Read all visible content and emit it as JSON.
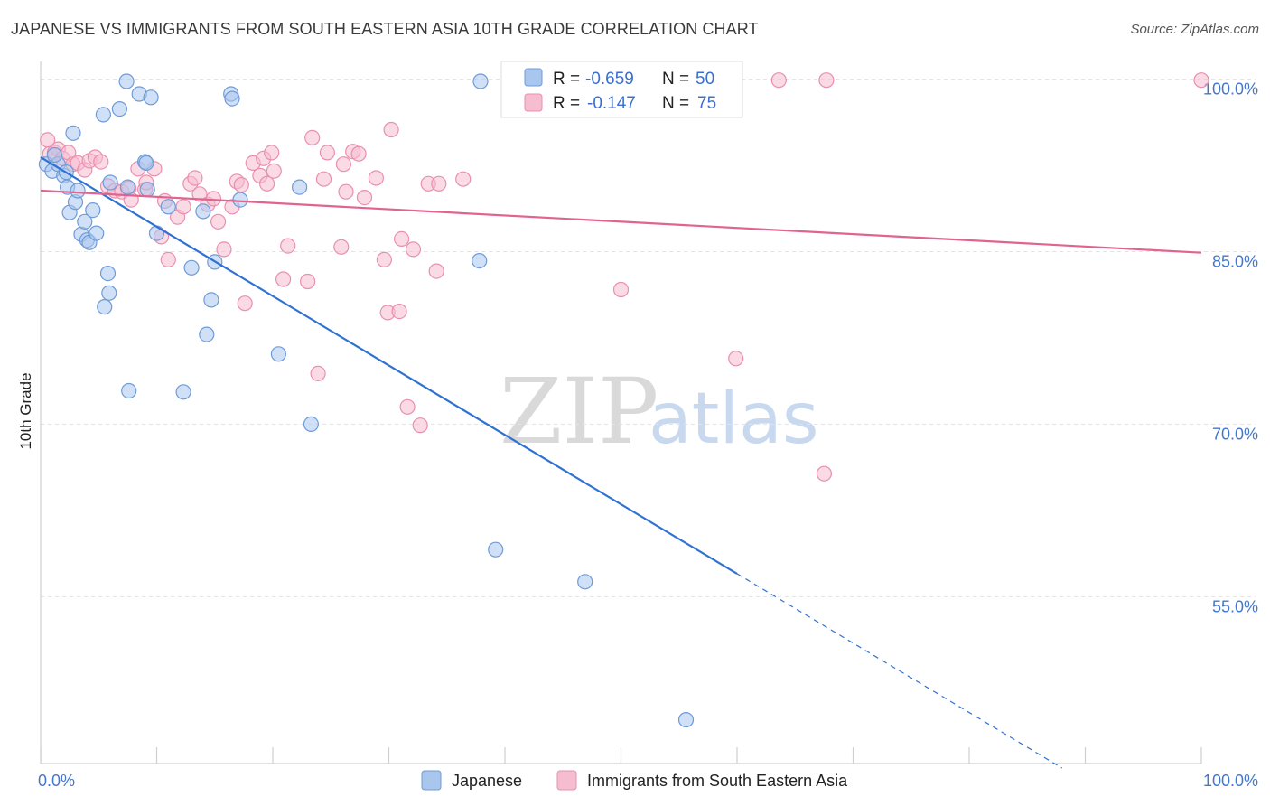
{
  "header": {
    "title": "JAPANESE VS IMMIGRANTS FROM SOUTH EASTERN ASIA 10TH GRADE CORRELATION CHART",
    "source": "Source: ZipAtlas.com"
  },
  "watermark": {
    "zip": "ZIP",
    "atlas": "atlas"
  },
  "colors": {
    "blue_fill": "#a9c6ee",
    "blue_stroke": "#6f9bd8",
    "blue_line": "#2f72d2",
    "pink_fill": "#f6bccf",
    "pink_stroke": "#ea8fae",
    "pink_line": "#e0648f",
    "grid": "#e3e3e3",
    "axis": "#cfcfcf"
  },
  "stats_box": {
    "rows": [
      {
        "r_label": "R =",
        "r_value": "-0.659",
        "n_label": "N =",
        "n_value": "50",
        "color": "blue"
      },
      {
        "r_label": "R =",
        "r_value": "-0.147",
        "n_label": "N =",
        "n_value": "75",
        "color": "pink"
      }
    ]
  },
  "chart_data": {
    "type": "scatter",
    "title": "JAPANESE VS IMMIGRANTS FROM SOUTH EASTERN ASIA 10TH GRADE CORRELATION CHART",
    "xlabel": "",
    "ylabel": "10th Grade",
    "xlim": [
      0,
      100
    ],
    "ylim": [
      40.5,
      102
    ],
    "x_tick_labels": [
      {
        "value": 0,
        "label": "0.0%"
      },
      {
        "value": 100,
        "label": "100.0%"
      }
    ],
    "y_tick_labels": [
      {
        "value": 100,
        "label": "100.0%"
      },
      {
        "value": 85,
        "label": "85.0%"
      },
      {
        "value": 70,
        "label": "70.0%"
      },
      {
        "value": 55,
        "label": "55.0%"
      }
    ],
    "y_gridlines": [
      100,
      85,
      70,
      55
    ],
    "legend_position": "bottom",
    "series": [
      {
        "name": "Japanese",
        "color": "#6f9bd8",
        "trend": {
          "x0": 0.0,
          "y0": 93.2,
          "x1": 60.0,
          "y1": 57.0,
          "dashed_to_x": 88.0
        },
        "points": [
          [
            0.5,
            92.6
          ],
          [
            1.0,
            92.0
          ],
          [
            1.5,
            92.6
          ],
          [
            2.0,
            91.6
          ],
          [
            2.2,
            91.9
          ],
          [
            2.3,
            90.6
          ],
          [
            2.5,
            88.4
          ],
          [
            2.8,
            95.3
          ],
          [
            3.0,
            89.3
          ],
          [
            3.2,
            90.3
          ],
          [
            3.5,
            86.5
          ],
          [
            3.8,
            87.6
          ],
          [
            4.0,
            86.0
          ],
          [
            4.2,
            85.8
          ],
          [
            4.5,
            88.6
          ],
          [
            4.8,
            86.6
          ],
          [
            5.4,
            96.9
          ],
          [
            5.8,
            83.1
          ],
          [
            5.9,
            81.4
          ],
          [
            5.5,
            80.2
          ],
          [
            6.8,
            97.4
          ],
          [
            7.4,
            99.8
          ],
          [
            7.5,
            90.6
          ],
          [
            7.6,
            72.9
          ],
          [
            8.5,
            98.7
          ],
          [
            9.0,
            92.8
          ],
          [
            9.1,
            92.7
          ],
          [
            9.5,
            98.4
          ],
          [
            10.0,
            86.6
          ],
          [
            11.0,
            88.9
          ],
          [
            12.3,
            72.8
          ],
          [
            13.0,
            83.6
          ],
          [
            14.0,
            88.5
          ],
          [
            14.3,
            77.8
          ],
          [
            14.7,
            80.8
          ],
          [
            15.0,
            84.1
          ],
          [
            16.4,
            98.7
          ],
          [
            16.5,
            98.3
          ],
          [
            17.2,
            89.5
          ],
          [
            20.5,
            76.1
          ],
          [
            22.3,
            90.6
          ],
          [
            23.3,
            70.0
          ],
          [
            37.8,
            84.2
          ],
          [
            37.9,
            99.8
          ],
          [
            39.2,
            59.1
          ],
          [
            46.9,
            56.3
          ],
          [
            55.6,
            44.3
          ],
          [
            6.0,
            91.0
          ],
          [
            1.2,
            93.4
          ],
          [
            9.2,
            90.4
          ]
        ]
      },
      {
        "name": "Immigrants from South Eastern Asia",
        "color": "#ea8fae",
        "trend": {
          "x0": 0.0,
          "y0": 90.3,
          "x1": 100.0,
          "y1": 84.9
        },
        "points": [
          [
            0.6,
            94.7
          ],
          [
            0.8,
            93.5
          ],
          [
            1.2,
            93.6
          ],
          [
            1.5,
            93.9
          ],
          [
            1.9,
            93.1
          ],
          [
            2.4,
            93.6
          ],
          [
            2.8,
            92.6
          ],
          [
            3.2,
            92.7
          ],
          [
            3.8,
            92.1
          ],
          [
            4.2,
            92.9
          ],
          [
            4.7,
            93.2
          ],
          [
            5.2,
            92.8
          ],
          [
            5.8,
            90.7
          ],
          [
            6.4,
            90.3
          ],
          [
            7.0,
            90.2
          ],
          [
            7.6,
            90.5
          ],
          [
            7.8,
            89.5
          ],
          [
            8.4,
            92.2
          ],
          [
            9.0,
            90.4
          ],
          [
            9.1,
            91.0
          ],
          [
            9.8,
            92.2
          ],
          [
            10.4,
            86.3
          ],
          [
            10.7,
            89.4
          ],
          [
            11.0,
            84.3
          ],
          [
            11.8,
            88.0
          ],
          [
            12.3,
            88.9
          ],
          [
            12.9,
            90.9
          ],
          [
            13.3,
            91.4
          ],
          [
            13.7,
            90.0
          ],
          [
            14.4,
            89.1
          ],
          [
            14.9,
            89.6
          ],
          [
            15.3,
            87.6
          ],
          [
            15.8,
            85.2
          ],
          [
            16.5,
            88.9
          ],
          [
            16.9,
            91.1
          ],
          [
            17.3,
            90.8
          ],
          [
            17.6,
            80.5
          ],
          [
            18.3,
            92.7
          ],
          [
            18.9,
            91.6
          ],
          [
            19.2,
            93.1
          ],
          [
            19.9,
            93.6
          ],
          [
            20.1,
            92.0
          ],
          [
            20.9,
            82.6
          ],
          [
            21.3,
            85.5
          ],
          [
            23.0,
            82.4
          ],
          [
            23.4,
            94.9
          ],
          [
            23.9,
            74.4
          ],
          [
            24.4,
            91.3
          ],
          [
            24.7,
            93.6
          ],
          [
            25.9,
            85.4
          ],
          [
            26.1,
            92.6
          ],
          [
            26.3,
            90.2
          ],
          [
            26.9,
            93.7
          ],
          [
            27.4,
            93.5
          ],
          [
            27.9,
            89.7
          ],
          [
            28.9,
            91.4
          ],
          [
            29.6,
            84.3
          ],
          [
            29.9,
            79.7
          ],
          [
            30.2,
            95.6
          ],
          [
            30.9,
            79.8
          ],
          [
            31.1,
            86.1
          ],
          [
            31.6,
            71.5
          ],
          [
            32.1,
            85.2
          ],
          [
            32.7,
            69.9
          ],
          [
            33.4,
            90.9
          ],
          [
            34.1,
            83.3
          ],
          [
            34.3,
            90.9
          ],
          [
            36.4,
            91.3
          ],
          [
            50.0,
            81.7
          ],
          [
            59.9,
            75.7
          ],
          [
            63.6,
            99.9
          ],
          [
            67.7,
            99.9
          ],
          [
            67.5,
            65.7
          ],
          [
            100.0,
            99.9
          ],
          [
            19.5,
            90.9
          ]
        ]
      }
    ]
  },
  "legend": {
    "items": [
      {
        "label": "Japanese",
        "color": "blue"
      },
      {
        "label": "Immigrants from South Eastern Asia",
        "color": "pink"
      }
    ]
  }
}
